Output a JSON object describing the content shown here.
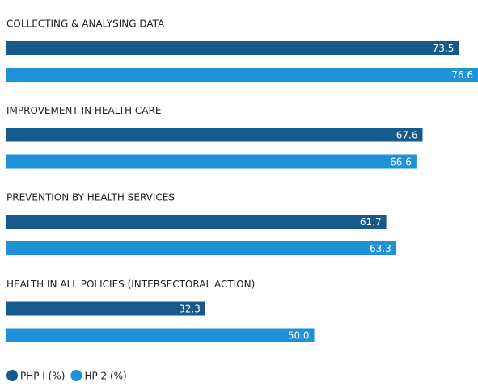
{
  "chart_data": {
    "type": "bar",
    "orientation": "horizontal",
    "categories": [
      "COLLECTING & ANALYSING DATA",
      "IMPROVEMENT IN HEALTH CARE",
      "PREVENTION BY HEALTH SERVICES",
      "HEALTH IN ALL POLICIES (INTERSECTORAL ACTION)"
    ],
    "series": [
      {
        "name": "PHP I (%)",
        "color": "#165a8c",
        "values": [
          73.5,
          67.6,
          61.7,
          32.3
        ],
        "value_labels": [
          "73.5",
          "67.6",
          "61.7",
          "32.3"
        ]
      },
      {
        "name": "HP 2 (%)",
        "color": "#1f91d8",
        "values": [
          76.6,
          66.6,
          63.3,
          50
        ],
        "value_labels": [
          "76.6",
          "66.6",
          "63.3",
          "50.0"
        ]
      }
    ]
  }
}
